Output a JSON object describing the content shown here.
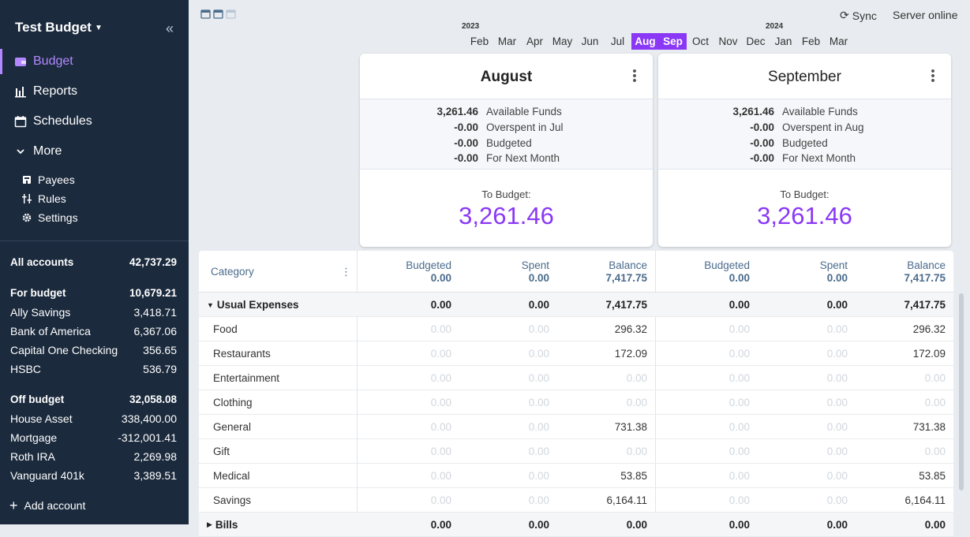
{
  "sidebar": {
    "title": "Test Budget",
    "nav": [
      {
        "label": "Budget",
        "icon": "wallet-icon"
      },
      {
        "label": "Reports",
        "icon": "chart-icon"
      },
      {
        "label": "Schedules",
        "icon": "calendar-icon"
      },
      {
        "label": "More",
        "icon": "chevron-down-icon"
      }
    ],
    "more_items": [
      {
        "label": "Payees",
        "icon": "store-icon"
      },
      {
        "label": "Rules",
        "icon": "sliders-icon"
      },
      {
        "label": "Settings",
        "icon": "gear-icon"
      }
    ],
    "all_accounts": {
      "label": "All accounts",
      "value": "42,737.29"
    },
    "for_budget": {
      "label": "For budget",
      "value": "10,679.21"
    },
    "budget_accounts": [
      {
        "name": "Ally Savings",
        "value": "3,418.71"
      },
      {
        "name": "Bank of America",
        "value": "6,367.06"
      },
      {
        "name": "Capital One Checking",
        "value": "356.65"
      },
      {
        "name": "HSBC",
        "value": "536.79"
      }
    ],
    "off_budget": {
      "label": "Off budget",
      "value": "32,058.08"
    },
    "off_accounts": [
      {
        "name": "House Asset",
        "value": "338,400.00"
      },
      {
        "name": "Mortgage",
        "value": "-312,001.41"
      },
      {
        "name": "Roth IRA",
        "value": "2,269.98"
      },
      {
        "name": "Vanguard 401k",
        "value": "3,389.51"
      }
    ],
    "add_account": "Add account"
  },
  "topbar": {
    "sync": "Sync",
    "server_status": "Server online",
    "year1": "2023",
    "year2": "2024",
    "months": [
      "Feb",
      "Mar",
      "Apr",
      "May",
      "Jun",
      "Jul",
      "Aug",
      "Sep",
      "Oct",
      "Nov",
      "Dec",
      "Jan",
      "Feb",
      "Mar"
    ],
    "selected_months": [
      "Aug",
      "Sep"
    ]
  },
  "cards": [
    {
      "title": "August",
      "summary": [
        {
          "value": "3,261.46",
          "label": "Available Funds"
        },
        {
          "value": "-0.00",
          "label": "Overspent in Jul"
        },
        {
          "value": "-0.00",
          "label": "Budgeted"
        },
        {
          "value": "-0.00",
          "label": "For Next Month"
        }
      ],
      "to_budget_label": "To Budget:",
      "to_budget": "3,261.46"
    },
    {
      "title": "September",
      "summary": [
        {
          "value": "3,261.46",
          "label": "Available Funds"
        },
        {
          "value": "-0.00",
          "label": "Overspent in Aug"
        },
        {
          "value": "-0.00",
          "label": "Budgeted"
        },
        {
          "value": "-0.00",
          "label": "For Next Month"
        }
      ],
      "to_budget_label": "To Budget:",
      "to_budget": "3,261.46"
    }
  ],
  "table": {
    "category_header": "Category",
    "months": [
      {
        "budgeted_label": "Budgeted",
        "budgeted": "0.00",
        "spent_label": "Spent",
        "spent": "0.00",
        "balance_label": "Balance",
        "balance": "7,417.75"
      },
      {
        "budgeted_label": "Budgeted",
        "budgeted": "0.00",
        "spent_label": "Spent",
        "spent": "0.00",
        "balance_label": "Balance",
        "balance": "7,417.75"
      }
    ],
    "rows": [
      {
        "type": "group",
        "name": "Usual Expenses",
        "cells": [
          "0.00",
          "0.00",
          "7,417.75",
          "0.00",
          "0.00",
          "7,417.75"
        ]
      },
      {
        "type": "cat",
        "name": "Food",
        "cells": [
          "0.00",
          "0.00",
          "296.32",
          "0.00",
          "0.00",
          "296.32"
        ]
      },
      {
        "type": "cat",
        "name": "Restaurants",
        "cells": [
          "0.00",
          "0.00",
          "172.09",
          "0.00",
          "0.00",
          "172.09"
        ]
      },
      {
        "type": "cat",
        "name": "Entertainment",
        "cells": [
          "0.00",
          "0.00",
          "0.00",
          "0.00",
          "0.00",
          "0.00"
        ]
      },
      {
        "type": "cat",
        "name": "Clothing",
        "cells": [
          "0.00",
          "0.00",
          "0.00",
          "0.00",
          "0.00",
          "0.00"
        ]
      },
      {
        "type": "cat",
        "name": "General",
        "cells": [
          "0.00",
          "0.00",
          "731.38",
          "0.00",
          "0.00",
          "731.38"
        ]
      },
      {
        "type": "cat",
        "name": "Gift",
        "cells": [
          "0.00",
          "0.00",
          "0.00",
          "0.00",
          "0.00",
          "0.00"
        ]
      },
      {
        "type": "cat",
        "name": "Medical",
        "cells": [
          "0.00",
          "0.00",
          "53.85",
          "0.00",
          "0.00",
          "53.85"
        ]
      },
      {
        "type": "cat",
        "name": "Savings",
        "cells": [
          "0.00",
          "0.00",
          "6,164.11",
          "0.00",
          "0.00",
          "6,164.11"
        ]
      },
      {
        "type": "group-collapsed",
        "name": "Bills",
        "cells": [
          "0.00",
          "0.00",
          "0.00",
          "0.00",
          "0.00",
          "0.00"
        ]
      }
    ]
  },
  "colors": {
    "accent": "#8a38f5",
    "sidebar_bg": "#1b2a3d"
  }
}
